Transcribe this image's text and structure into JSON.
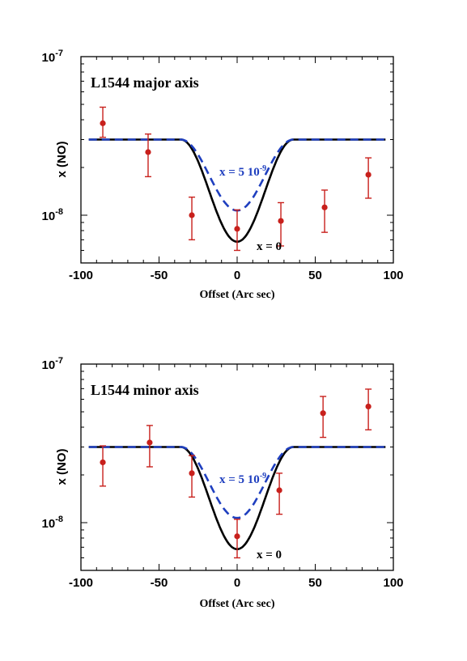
{
  "chart_data": [
    {
      "type": "line",
      "title": "L1544 major axis",
      "xlabel": "Offset (Arc sec)",
      "ylabel": "x (NO)",
      "xlim": [
        -100,
        100
      ],
      "ylim": [
        5e-09,
        1e-07
      ],
      "yscale": "log",
      "xticks": [
        "-100",
        "-50",
        "0",
        "50",
        "100"
      ],
      "ytick_labels": [
        {
          "value": 1e-07,
          "base": "10",
          "exp": "-7"
        },
        {
          "value": 1e-08,
          "base": "10",
          "exp": "-8"
        }
      ],
      "grid": false,
      "series": [
        {
          "name": "x = 0",
          "style": "solid",
          "color": "#000000",
          "plateau": 3e-08,
          "min": 6.8e-09,
          "inner": -36,
          "outer": 36,
          "flat_from": -95,
          "flat_to": 95
        },
        {
          "name": "x = 5 10-9",
          "style": "dashed",
          "color": "#1f3fbf",
          "plateau": 3e-08,
          "min": 1.07e-08,
          "inner": -36,
          "outer": 36,
          "flat_from": -95,
          "flat_to": 95
        }
      ],
      "points": [
        {
          "x": -86,
          "y": 3.8e-08,
          "lo": 3.1e-08,
          "hi": 4.8e-08
        },
        {
          "x": -57,
          "y": 2.5e-08,
          "lo": 1.75e-08,
          "hi": 3.25e-08
        },
        {
          "x": -29,
          "y": 1e-08,
          "lo": 7e-09,
          "hi": 1.3e-08
        },
        {
          "x": 0,
          "y": 8.2e-09,
          "lo": 6e-09,
          "hi": 1.08e-08
        },
        {
          "x": 28,
          "y": 9.2e-09,
          "lo": 6.4e-09,
          "hi": 1.2e-08
        },
        {
          "x": 56,
          "y": 1.12e-08,
          "lo": 7.8e-09,
          "hi": 1.44e-08
        },
        {
          "x": 84,
          "y": 1.8e-08,
          "lo": 1.28e-08,
          "hi": 2.3e-08
        }
      ],
      "annotations": [
        {
          "text_main": "x = 5 10",
          "text_exp": "-9",
          "color": "#1f3fbf"
        },
        {
          "text_main": "x = 0",
          "color": "#000000"
        }
      ],
      "point_color": "#c8201c"
    },
    {
      "type": "line",
      "title": "L1544 minor axis",
      "xlabel": "Offset (Arc sec)",
      "ylabel": "x (NO)",
      "xlim": [
        -100,
        100
      ],
      "ylim": [
        5e-09,
        1e-07
      ],
      "yscale": "log",
      "xticks": [
        "-100",
        "-50",
        "0",
        "50",
        "100"
      ],
      "ytick_labels": [
        {
          "value": 1e-07,
          "base": "10",
          "exp": "-7"
        },
        {
          "value": 1e-08,
          "base": "10",
          "exp": "-8"
        }
      ],
      "grid": false,
      "series": [
        {
          "name": "x = 0",
          "style": "solid",
          "color": "#000000",
          "plateau": 3e-08,
          "min": 6.8e-09,
          "inner": -36,
          "outer": 36,
          "flat_from": -95,
          "flat_to": 95
        },
        {
          "name": "x = 5 10-9",
          "style": "dashed",
          "color": "#1f3fbf",
          "plateau": 3e-08,
          "min": 1.07e-08,
          "inner": -36,
          "outer": 36,
          "flat_from": -95,
          "flat_to": 95
        }
      ],
      "points": [
        {
          "x": -86,
          "y": 2.4e-08,
          "lo": 1.7e-08,
          "hi": 3.05e-08
        },
        {
          "x": -56,
          "y": 3.2e-08,
          "lo": 2.25e-08,
          "hi": 4.1e-08
        },
        {
          "x": -29,
          "y": 2.05e-08,
          "lo": 1.45e-08,
          "hi": 2.65e-08
        },
        {
          "x": 0,
          "y": 8.2e-09,
          "lo": 6e-09,
          "hi": 1.05e-08
        },
        {
          "x": 27,
          "y": 1.6e-08,
          "lo": 1.13e-08,
          "hi": 2.05e-08
        },
        {
          "x": 55,
          "y": 4.9e-08,
          "lo": 3.45e-08,
          "hi": 6.25e-08
        },
        {
          "x": 84,
          "y": 5.4e-08,
          "lo": 3.85e-08,
          "hi": 6.95e-08
        }
      ],
      "annotations": [
        {
          "text_main": "x = 5 10",
          "text_exp": "-9",
          "color": "#1f3fbf"
        },
        {
          "text_main": "x = 0",
          "color": "#000000"
        }
      ],
      "point_color": "#c8201c"
    }
  ]
}
